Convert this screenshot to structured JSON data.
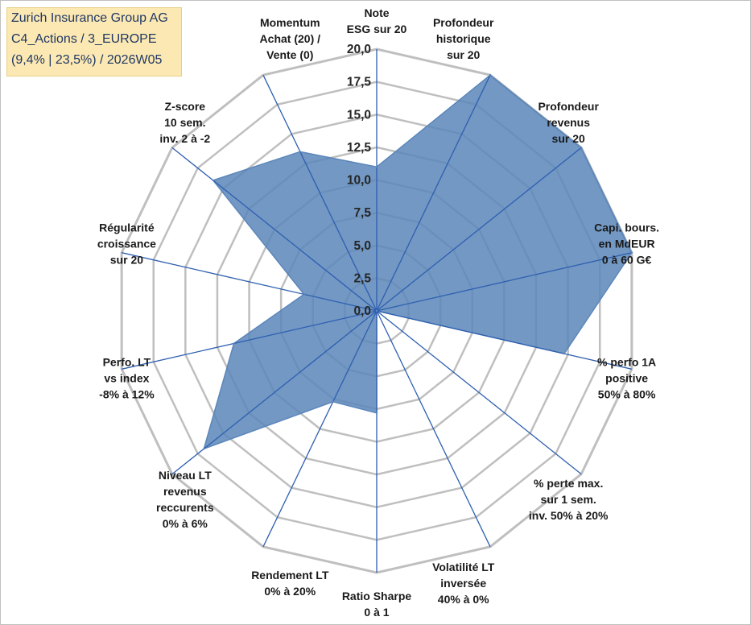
{
  "info": {
    "line1": "Zurich Insurance Group AG",
    "line2": "C4_Actions / 3_EUROPE",
    "line3": "(9,4% | 23,5%) / 2026W05"
  },
  "colors": {
    "fill": "#5b86ba",
    "axis": "#2e5fb0",
    "grid": "#bfbfbf",
    "info_bg": "#fce8b2",
    "info_text": "#1f3864"
  },
  "chart_data": {
    "type": "radar",
    "rmin": 0,
    "rmax": 20,
    "ticks": [
      "0,0",
      "2,5",
      "5,0",
      "7,5",
      "10,0",
      "12,5",
      "15,0",
      "17,5",
      "20,0"
    ],
    "categories": [
      {
        "lines": [
          "Note",
          "ESG sur 20"
        ]
      },
      {
        "lines": [
          "Profondeur",
          "historique",
          "sur 20"
        ]
      },
      {
        "lines": [
          "Profondeur",
          "revenus",
          "sur 20"
        ]
      },
      {
        "lines": [
          "Capi. bours.",
          "en MdEUR",
          "0 à 60 G€"
        ]
      },
      {
        "lines": [
          "% perfo 1A",
          "positive",
          "50% à 80%"
        ]
      },
      {
        "lines": [
          "% perte max.",
          "sur 1 sem.",
          "inv. 50% à 20%"
        ]
      },
      {
        "lines": [
          "Volatilité LT",
          "inversée",
          "40% à 0%"
        ]
      },
      {
        "lines": [
          "Ratio Sharpe",
          "0 à 1"
        ]
      },
      {
        "lines": [
          "Rendement LT",
          "0% à 20%"
        ]
      },
      {
        "lines": [
          "Niveau LT",
          "revenus",
          "reccurents",
          "0% à 6%"
        ]
      },
      {
        "lines": [
          "Perfo. LT",
          "vs index",
          "-8% à 12%"
        ]
      },
      {
        "lines": [
          "Régularité",
          "croissance",
          "sur 20"
        ]
      },
      {
        "lines": [
          "Z-score",
          "10 sem.",
          "inv. 2 à -2"
        ]
      },
      {
        "lines": [
          "Momentum",
          "Achat (20) /",
          "Vente (0)"
        ]
      }
    ],
    "series": [
      {
        "name": "Zurich Insurance Group AG",
        "values": [
          11.0,
          20.0,
          20.0,
          20.0,
          14.7,
          0.0,
          0.0,
          7.8,
          7.7,
          16.9,
          11.2,
          5.7,
          16.0,
          13.5
        ]
      }
    ]
  }
}
